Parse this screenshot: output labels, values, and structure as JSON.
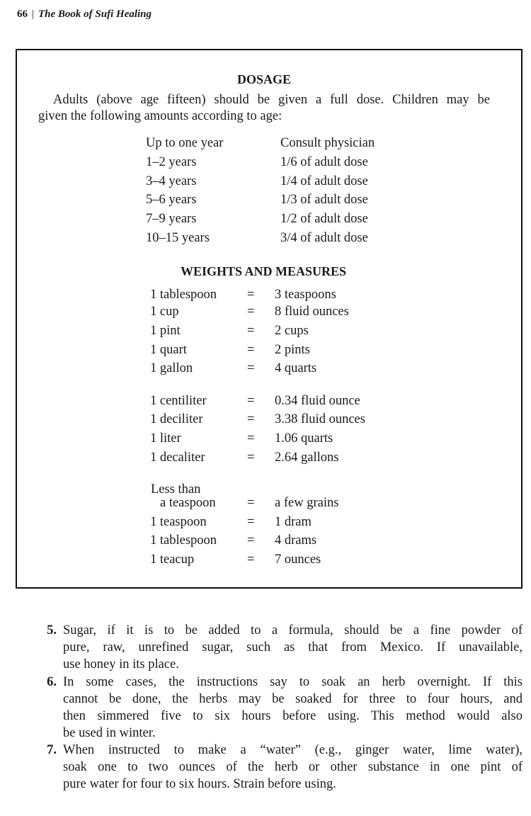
{
  "header": {
    "page_number": "66",
    "separator": "|",
    "book_title": "The Book of Sufi Healing"
  },
  "dosage": {
    "title": "DOSAGE",
    "intro_lines": [
      "Adults (above age fifteen) should be given a full dose. Children may be",
      "given the following amounts according to age:"
    ],
    "rows": [
      {
        "age": "Up to one year",
        "amount": "Consult physician"
      },
      {
        "age": "1–2 years",
        "amount": "1/6 of adult dose"
      },
      {
        "age": "3–4 years",
        "amount": "1/4 of adult dose"
      },
      {
        "age": "5–6 years",
        "amount": "1/3 of adult dose"
      },
      {
        "age": "7–9 years",
        "amount": "1/2 of adult dose"
      },
      {
        "age": "10–15 years",
        "amount": "3/4 of adult dose"
      }
    ]
  },
  "weights": {
    "title": "WEIGHTS AND MEASURES",
    "rows": [
      {
        "unit": "1 tablespoon",
        "eq": "=",
        "value": "3 teaspoons"
      },
      {
        "unit": "1 cup",
        "eq": "=",
        "value": "8 fluid ounces"
      },
      {
        "unit": "1 pint",
        "eq": "=",
        "value": "2 cups"
      },
      {
        "unit": "1 quart",
        "eq": "=",
        "value": "2 pints"
      },
      {
        "unit": "1 gallon",
        "eq": "=",
        "value": "4 quarts"
      },
      {
        "unit": "1 centiliter",
        "eq": "=",
        "value": "0.34 fluid ounce"
      },
      {
        "unit": "1 deciliter",
        "eq": "=",
        "value": "3.38 fluid ounces"
      },
      {
        "unit": "1 liter",
        "eq": "=",
        "value": "1.06 quarts"
      },
      {
        "unit": "1 decaliter",
        "eq": "=",
        "value": "2.64 gallons"
      },
      {
        "unit": "Less than",
        "unit2": "a teaspoon",
        "eq": "=",
        "value": "a few grains"
      },
      {
        "unit": "1 teaspoon",
        "eq": "=",
        "value": "1 dram"
      },
      {
        "unit": "1 tablespoon",
        "eq": "=",
        "value": "4 drams"
      },
      {
        "unit": "1 teacup",
        "eq": "=",
        "value": "7 ounces"
      }
    ]
  },
  "items": [
    {
      "number": "5.",
      "lines": [
        "Sugar, if it is to be added to a formula, should be a fine powder of",
        "pure, raw, unrefined sugar, such as that from Mexico. If unavailable,",
        "use honey in its place."
      ]
    },
    {
      "number": "6.",
      "lines": [
        "In some cases, the instructions say to soak an herb overnight. If this",
        "cannot be done, the herbs may be soaked for three to four hours, and",
        "then simmered five to six hours before using. This method would also",
        "be used in winter."
      ]
    },
    {
      "number": "7.",
      "lines": [
        "When instructed to make a “water” (e.g., ginger water, lime water),",
        "soak one to two ounces of the herb or other substance in one pint of",
        "pure water for four to six hours. Strain before using."
      ]
    }
  ]
}
